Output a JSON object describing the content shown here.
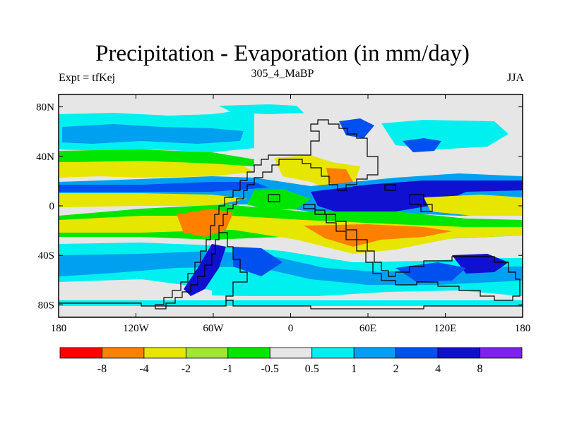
{
  "figure": {
    "title": "Precipitation - Evaporation (in mm/day)",
    "subtitle": "305_4_MaBP",
    "left_label": "Expt = tfKej",
    "right_label": "JJA"
  },
  "axes": {
    "lon_range": [
      -180,
      180
    ],
    "lat_range": [
      -90,
      90
    ],
    "x_ticks": [
      {
        "value": -180,
        "label": "180"
      },
      {
        "value": -120,
        "label": "120W"
      },
      {
        "value": -60,
        "label": "60W"
      },
      {
        "value": 0,
        "label": "0"
      },
      {
        "value": 60,
        "label": "60E"
      },
      {
        "value": 120,
        "label": "120E"
      },
      {
        "value": 180,
        "label": "180"
      }
    ],
    "y_ticks": [
      {
        "value": 80,
        "label": "80N"
      },
      {
        "value": 40,
        "label": "40N"
      },
      {
        "value": 0,
        "label": "0"
      },
      {
        "value": -40,
        "label": "40S"
      },
      {
        "value": -80,
        "label": "80S"
      }
    ]
  },
  "colorbar": {
    "colors": [
      "#ff0000",
      "#ff8000",
      "#e6e600",
      "#a0e632",
      "#00e600",
      "#e6e6e6",
      "#00f0f0",
      "#00a0f0",
      "#0050f0",
      "#1010d0",
      "#8020f0"
    ],
    "labels": [
      "-8",
      "-4",
      "-2",
      "-1",
      "-0.5",
      "0.5",
      "1",
      "2",
      "4",
      "8"
    ]
  },
  "legend_levels": {
    "red": "#ff0000",
    "orange": "#ff8000",
    "yellow": "#e6e600",
    "lightgreen": "#a0e632",
    "green": "#00e600",
    "gray": "#e6e6e6",
    "cyan": "#00f0f0",
    "lightblue": "#00a0f0",
    "blue": "#0050f0",
    "darkblue": "#1010d0",
    "purple": "#8020f0"
  }
}
